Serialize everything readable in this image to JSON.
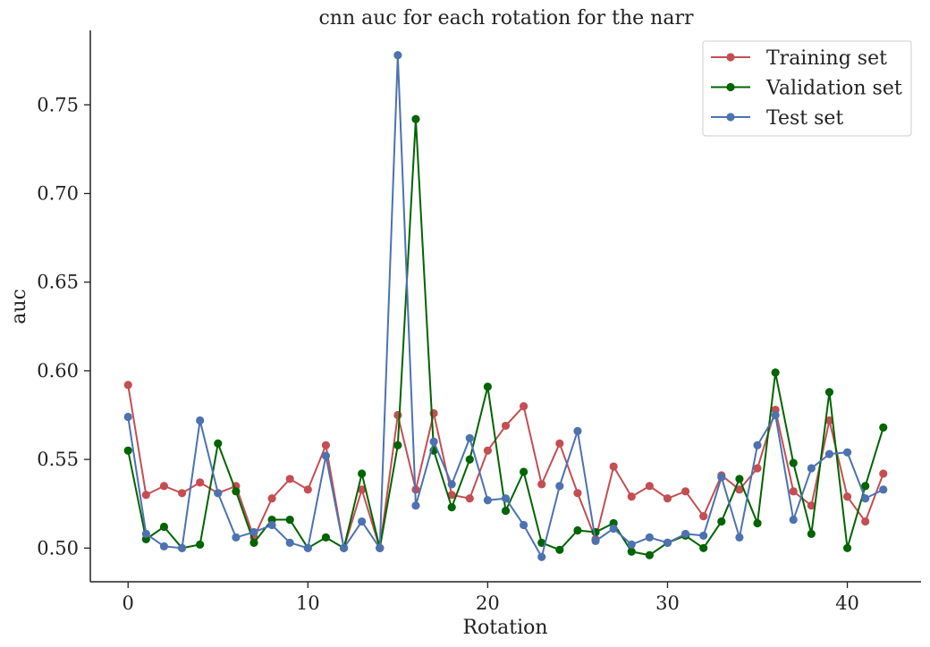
{
  "chart_data": {
    "type": "line",
    "title": "cnn auc for each rotation for the narr",
    "xlabel": "Rotation",
    "ylabel": "auc",
    "xlim": [
      -2.1,
      44.1
    ],
    "ylim": [
      0.481,
      0.792
    ],
    "xticks": [
      0,
      10,
      20,
      30,
      40
    ],
    "xtick_labels": [
      "0",
      "10",
      "20",
      "30",
      "40"
    ],
    "yticks": [
      0.5,
      0.55,
      0.6,
      0.65,
      0.7,
      0.75
    ],
    "ytick_labels": [
      "0.50",
      "0.55",
      "0.60",
      "0.65",
      "0.70",
      "0.75"
    ],
    "grid": false,
    "legend_position": "top-right",
    "x": [
      0,
      1,
      2,
      3,
      4,
      5,
      6,
      7,
      8,
      9,
      10,
      11,
      12,
      13,
      14,
      15,
      16,
      17,
      18,
      19,
      20,
      21,
      22,
      23,
      24,
      25,
      26,
      27,
      28,
      29,
      30,
      31,
      32,
      33,
      34,
      35,
      36,
      37,
      38,
      39,
      40,
      41,
      42
    ],
    "series": [
      {
        "name": "Training set",
        "color": "#c44e52",
        "values": [
          0.592,
          0.53,
          0.535,
          0.531,
          0.537,
          0.531,
          0.535,
          0.506,
          0.528,
          0.539,
          0.533,
          0.558,
          0.5,
          0.533,
          0.5,
          0.575,
          0.533,
          0.576,
          0.53,
          0.528,
          0.555,
          0.569,
          0.58,
          0.536,
          0.559,
          0.531,
          0.505,
          0.546,
          0.529,
          0.535,
          0.528,
          0.532,
          0.518,
          0.541,
          0.533,
          0.545,
          0.578,
          0.532,
          0.524,
          0.572,
          0.529,
          0.515,
          0.542
        ]
      },
      {
        "name": "Validation set",
        "color": "#006400",
        "values": [
          0.555,
          0.505,
          0.512,
          0.5,
          0.502,
          0.559,
          0.532,
          0.503,
          0.516,
          0.516,
          0.5,
          0.506,
          0.5,
          0.542,
          0.5,
          0.558,
          0.742,
          0.555,
          0.523,
          0.55,
          0.591,
          0.521,
          0.543,
          0.503,
          0.499,
          0.51,
          0.509,
          0.514,
          0.498,
          0.496,
          0.503,
          0.507,
          0.5,
          0.515,
          0.539,
          0.514,
          0.599,
          0.548,
          0.508,
          0.588,
          0.5,
          0.535,
          0.568
        ]
      },
      {
        "name": "Test set",
        "color": "#4c72b0",
        "values": [
          0.574,
          0.508,
          0.501,
          0.5,
          0.572,
          0.531,
          0.506,
          0.509,
          0.513,
          0.503,
          0.5,
          0.552,
          0.5,
          0.515,
          0.5,
          0.778,
          0.524,
          0.56,
          0.536,
          0.562,
          0.527,
          0.528,
          0.513,
          0.495,
          0.535,
          0.566,
          0.504,
          0.511,
          0.502,
          0.506,
          0.503,
          0.508,
          0.507,
          0.54,
          0.506,
          0.558,
          0.575,
          0.516,
          0.545,
          0.553,
          0.554,
          0.528,
          0.533
        ]
      }
    ]
  }
}
